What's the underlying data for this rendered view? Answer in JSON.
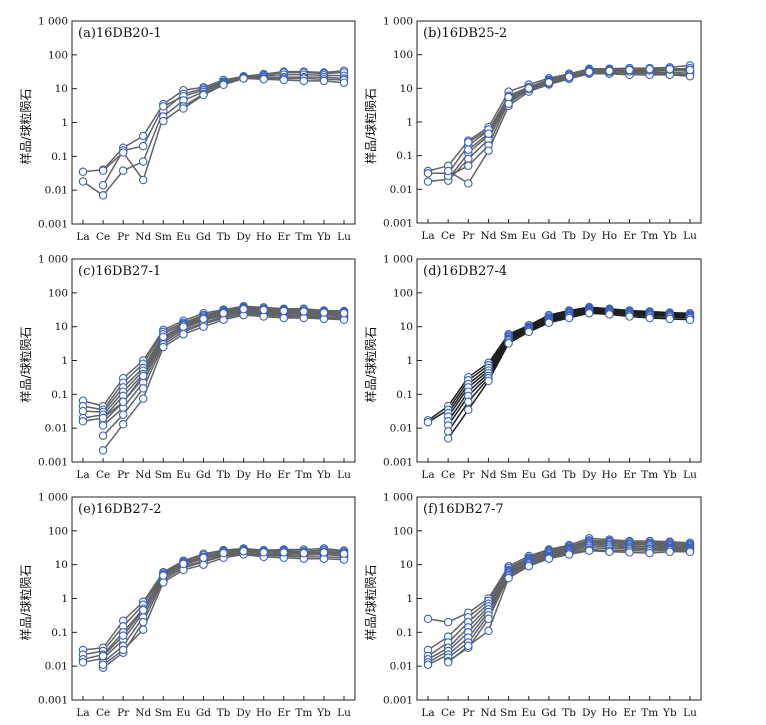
{
  "figure": {
    "y_axis_label": "样品/球粒陨石",
    "x_categories": [
      "La",
      "Ce",
      "Pr",
      "Nd",
      "Sm",
      "Eu",
      "Gd",
      "Tb",
      "Dy",
      "Ho",
      "Er",
      "Tm",
      "Yb",
      "Lu"
    ],
    "y_ticks": [
      "0.001",
      "0.01",
      "0.1",
      "1",
      "10",
      "100",
      "1 000"
    ],
    "colors": {
      "line_gray": "#636363",
      "line_dark": "#1f1f1f",
      "marker_stroke": "#3a62b8",
      "marker_fill": "#ffffff",
      "frame": "#222222"
    }
  },
  "chart_data": [
    {
      "type": "line",
      "title": "(a)16DB20-1",
      "yscale": "log",
      "ylim": [
        0.001,
        1000
      ],
      "line_color": "gray",
      "categories": [
        "La",
        "Ce",
        "Pr",
        "Nd",
        "Sm",
        "Eu",
        "Gd",
        "Tb",
        "Dy",
        "Ho",
        "Er",
        "Tm",
        "Yb",
        "Lu"
      ],
      "series": [
        {
          "values": [
            0.035,
            0.04,
            0.18,
            0.4,
            3.5,
            9,
            11,
            18,
            23,
            27,
            32,
            32,
            30,
            34
          ]
        },
        {
          "values": [
            0.018,
            0.007,
            0.038,
            0.07,
            2.2,
            7,
            10,
            16,
            23,
            26,
            30,
            30,
            28,
            30
          ]
        },
        {
          "values": [
            null,
            0.014,
            0.15,
            0.2,
            3,
            6,
            9,
            16,
            22,
            24,
            26,
            26,
            25,
            24
          ]
        },
        {
          "values": [
            null,
            0.038,
            0.13,
            0.02,
            1.5,
            4.5,
            8,
            15,
            21,
            22,
            22,
            22,
            22,
            20
          ]
        },
        {
          "values": [
            null,
            null,
            null,
            null,
            1.1,
            3,
            7,
            14,
            20,
            20,
            20,
            20,
            19,
            18
          ]
        },
        {
          "values": [
            null,
            null,
            null,
            null,
            null,
            2.6,
            6.5,
            13,
            20,
            19,
            18,
            17,
            17,
            15
          ]
        }
      ]
    },
    {
      "type": "line",
      "title": "(b)16DB25-2",
      "yscale": "log",
      "ylim": [
        0.001,
        1000
      ],
      "line_color": "gray",
      "categories": [
        "La",
        "Ce",
        "Pr",
        "Nd",
        "Sm",
        "Eu",
        "Gd",
        "Tb",
        "Dy",
        "Ho",
        "Er",
        "Tm",
        "Yb",
        "Lu"
      ],
      "series": [
        {
          "values": [
            0.035,
            0.05,
            0.28,
            0.7,
            8,
            13,
            20,
            27,
            38,
            38,
            40,
            40,
            42,
            48
          ]
        },
        {
          "values": [
            0.03,
            0.03,
            0.2,
            0.55,
            6,
            11,
            18,
            25,
            36,
            36,
            36,
            36,
            38,
            38
          ]
        },
        {
          "values": [
            0.017,
            0.02,
            0.12,
            0.4,
            5,
            10,
            17,
            23,
            34,
            34,
            34,
            33,
            34,
            32
          ]
        },
        {
          "values": [
            null,
            0.018,
            0.08,
            0.3,
            4.5,
            9,
            16,
            22,
            32,
            31,
            30,
            30,
            30,
            28
          ]
        },
        {
          "values": [
            null,
            0.025,
            0.05,
            0.2,
            4,
            8.5,
            15,
            21,
            30,
            29,
            28,
            27,
            27,
            25
          ]
        },
        {
          "values": [
            null,
            0.035,
            0.015,
            0.14,
            3,
            8,
            13,
            19,
            27,
            27,
            25,
            25,
            25,
            23
          ]
        },
        {
          "values": [
            null,
            null,
            0.25,
            0.6,
            3.5,
            9.5,
            14,
            20,
            29,
            30,
            32,
            34,
            36,
            40
          ]
        },
        {
          "values": [
            null,
            null,
            0.15,
            0.45,
            5.5,
            10,
            15,
            22,
            31,
            33,
            35,
            37,
            37,
            35
          ]
        }
      ]
    },
    {
      "type": "line",
      "title": "(c)16DB27-1",
      "yscale": "log",
      "ylim": [
        0.001,
        1000
      ],
      "line_color": "gray",
      "categories": [
        "La",
        "Ce",
        "Pr",
        "Nd",
        "Sm",
        "Eu",
        "Gd",
        "Tb",
        "Dy",
        "Ho",
        "Er",
        "Tm",
        "Yb",
        "Lu"
      ],
      "series": [
        {
          "values": [
            0.065,
            0.045,
            0.3,
            1.0,
            8,
            15,
            25,
            32,
            40,
            37,
            34,
            34,
            30,
            29
          ]
        },
        {
          "values": [
            0.045,
            0.035,
            0.22,
            0.8,
            7,
            13,
            22,
            30,
            37,
            34,
            32,
            32,
            28,
            27
          ]
        },
        {
          "values": [
            0.032,
            0.03,
            0.16,
            0.6,
            6,
            12,
            20,
            28,
            35,
            32,
            30,
            29,
            27,
            26
          ]
        },
        {
          "values": [
            0.02,
            0.025,
            0.12,
            0.5,
            5,
            11,
            18,
            26,
            32,
            30,
            28,
            27,
            25,
            24
          ]
        },
        {
          "values": [
            0.016,
            0.02,
            0.09,
            0.4,
            4.5,
            10,
            16,
            24,
            30,
            28,
            26,
            25,
            23,
            22
          ]
        },
        {
          "values": [
            null,
            0.015,
            0.06,
            0.3,
            4,
            9,
            15,
            22,
            28,
            26,
            24,
            23,
            21,
            20
          ]
        },
        {
          "values": [
            null,
            0.012,
            0.04,
            0.22,
            3.5,
            8,
            13,
            20,
            26,
            24,
            22,
            21,
            19,
            18
          ]
        },
        {
          "values": [
            null,
            0.006,
            0.025,
            0.15,
            3,
            7,
            12,
            18,
            24,
            22,
            20,
            19,
            18,
            17
          ]
        },
        {
          "values": [
            null,
            0.0022,
            0.013,
            0.075,
            2.5,
            6,
            10,
            16,
            22,
            20,
            18,
            18,
            17,
            16
          ]
        },
        {
          "values": [
            null,
            0.02,
            0.06,
            0.35,
            5,
            10,
            17,
            25,
            33,
            31,
            29,
            28,
            26,
            25
          ]
        }
      ]
    },
    {
      "type": "line",
      "title": "(d)16DB27-4",
      "yscale": "log",
      "ylim": [
        0.001,
        1000
      ],
      "line_color": "dark",
      "categories": [
        "La",
        "Ce",
        "Pr",
        "Nd",
        "Sm",
        "Eu",
        "Gd",
        "Tb",
        "Dy",
        "Ho",
        "Er",
        "Tm",
        "Yb",
        "Lu"
      ],
      "series": [
        {
          "values": [
            0.017,
            0.045,
            0.32,
            0.85,
            6,
            11,
            22,
            30,
            38,
            34,
            30,
            28,
            26,
            25
          ]
        },
        {
          "values": [
            0.015,
            0.035,
            0.26,
            0.72,
            5.5,
            10,
            20,
            28,
            36,
            33,
            29,
            27,
            25,
            24
          ]
        },
        {
          "values": [
            null,
            0.028,
            0.2,
            0.6,
            5,
            9.5,
            18,
            26,
            34,
            31,
            28,
            26,
            24,
            22
          ]
        },
        {
          "values": [
            null,
            0.022,
            0.16,
            0.5,
            4.5,
            9,
            17,
            24,
            32,
            30,
            27,
            25,
            23,
            21
          ]
        },
        {
          "values": [
            null,
            0.016,
            0.12,
            0.42,
            4.2,
            8.5,
            16,
            22,
            30,
            28,
            25,
            23,
            22,
            20
          ]
        },
        {
          "values": [
            null,
            0.012,
            0.09,
            0.35,
            4,
            8,
            15,
            21,
            28,
            27,
            24,
            22,
            21,
            19
          ]
        },
        {
          "values": [
            null,
            0.008,
            0.06,
            0.3,
            3.6,
            7.5,
            14,
            20,
            27,
            25,
            22,
            20,
            19,
            18
          ]
        },
        {
          "values": [
            null,
            0.005,
            0.035,
            0.25,
            3.2,
            7,
            13,
            18,
            25,
            23,
            20,
            18,
            17,
            16
          ]
        }
      ]
    },
    {
      "type": "line",
      "title": "(e)16DB27-2",
      "yscale": "log",
      "ylim": [
        0.001,
        1000
      ],
      "line_color": "gray",
      "categories": [
        "La",
        "Ce",
        "Pr",
        "Nd",
        "Sm",
        "Eu",
        "Gd",
        "Tb",
        "Dy",
        "Ho",
        "Er",
        "Tm",
        "Yb",
        "Lu"
      ],
      "series": [
        {
          "values": [
            0.03,
            0.035,
            0.22,
            0.8,
            6,
            13,
            21,
            27,
            30,
            27,
            28,
            28,
            30,
            26
          ]
        },
        {
          "values": [
            0.022,
            0.028,
            0.15,
            0.65,
            5.5,
            12,
            19,
            25,
            28,
            25,
            26,
            25,
            27,
            24
          ]
        },
        {
          "values": [
            0.016,
            0.022,
            0.1,
            0.5,
            5,
            11,
            17,
            23,
            26,
            24,
            24,
            23,
            24,
            22
          ]
        },
        {
          "values": [
            0.013,
            0.017,
            0.06,
            0.38,
            4.5,
            10,
            15,
            21,
            24,
            22,
            22,
            21,
            22,
            20
          ]
        },
        {
          "values": [
            null,
            0.013,
            0.04,
            0.28,
            4,
            9,
            13,
            20,
            22,
            20,
            20,
            19,
            20,
            18
          ]
        },
        {
          "values": [
            null,
            0.009,
            0.025,
            0.2,
            3.5,
            8,
            12,
            18,
            21,
            19,
            18,
            17,
            17,
            16
          ]
        },
        {
          "values": [
            null,
            0.011,
            0.03,
            0.12,
            3,
            7,
            10,
            16,
            20,
            17,
            16,
            15,
            15,
            14
          ]
        },
        {
          "values": [
            null,
            0.02,
            0.08,
            0.45,
            4.8,
            10.5,
            16,
            22,
            25,
            23,
            23,
            22,
            23,
            21
          ]
        }
      ]
    },
    {
      "type": "line",
      "title": "(f)16DB27-7",
      "yscale": "log",
      "ylim": [
        0.001,
        1000
      ],
      "line_color": "gray",
      "categories": [
        "La",
        "Ce",
        "Pr",
        "Nd",
        "Sm",
        "Eu",
        "Gd",
        "Tb",
        "Dy",
        "Ho",
        "Er",
        "Tm",
        "Yb",
        "Lu"
      ],
      "series": [
        {
          "values": [
            0.25,
            0.2,
            0.38,
            1.0,
            9,
            18,
            28,
            38,
            60,
            55,
            50,
            50,
            48,
            44
          ]
        },
        {
          "values": [
            0.03,
            0.075,
            0.28,
            0.85,
            8,
            16,
            26,
            35,
            52,
            50,
            46,
            45,
            44,
            40
          ]
        },
        {
          "values": [
            0.02,
            0.05,
            0.2,
            0.7,
            7,
            15,
            24,
            32,
            48,
            46,
            42,
            41,
            40,
            37
          ]
        },
        {
          "values": [
            0.016,
            0.035,
            0.14,
            0.58,
            6.5,
            14,
            22,
            30,
            44,
            42,
            39,
            38,
            37,
            34
          ]
        },
        {
          "values": [
            0.013,
            0.028,
            0.1,
            0.48,
            6,
            13,
            20,
            28,
            40,
            38,
            35,
            34,
            34,
            31
          ]
        },
        {
          "values": [
            0.011,
            0.022,
            0.07,
            0.4,
            5.5,
            12,
            18,
            26,
            36,
            34,
            32,
            30,
            31,
            29
          ]
        },
        {
          "values": [
            null,
            0.018,
            0.05,
            0.32,
            5,
            11,
            17,
            24,
            32,
            30,
            29,
            28,
            29,
            27
          ]
        },
        {
          "values": [
            null,
            0.014,
            0.035,
            0.25,
            4.5,
            10,
            16,
            22,
            28,
            26,
            26,
            25,
            27,
            25
          ]
        },
        {
          "values": [
            null,
            0.013,
            0.04,
            0.11,
            4,
            9,
            15,
            20,
            26,
            24,
            23,
            22,
            24,
            24
          ]
        }
      ]
    }
  ]
}
